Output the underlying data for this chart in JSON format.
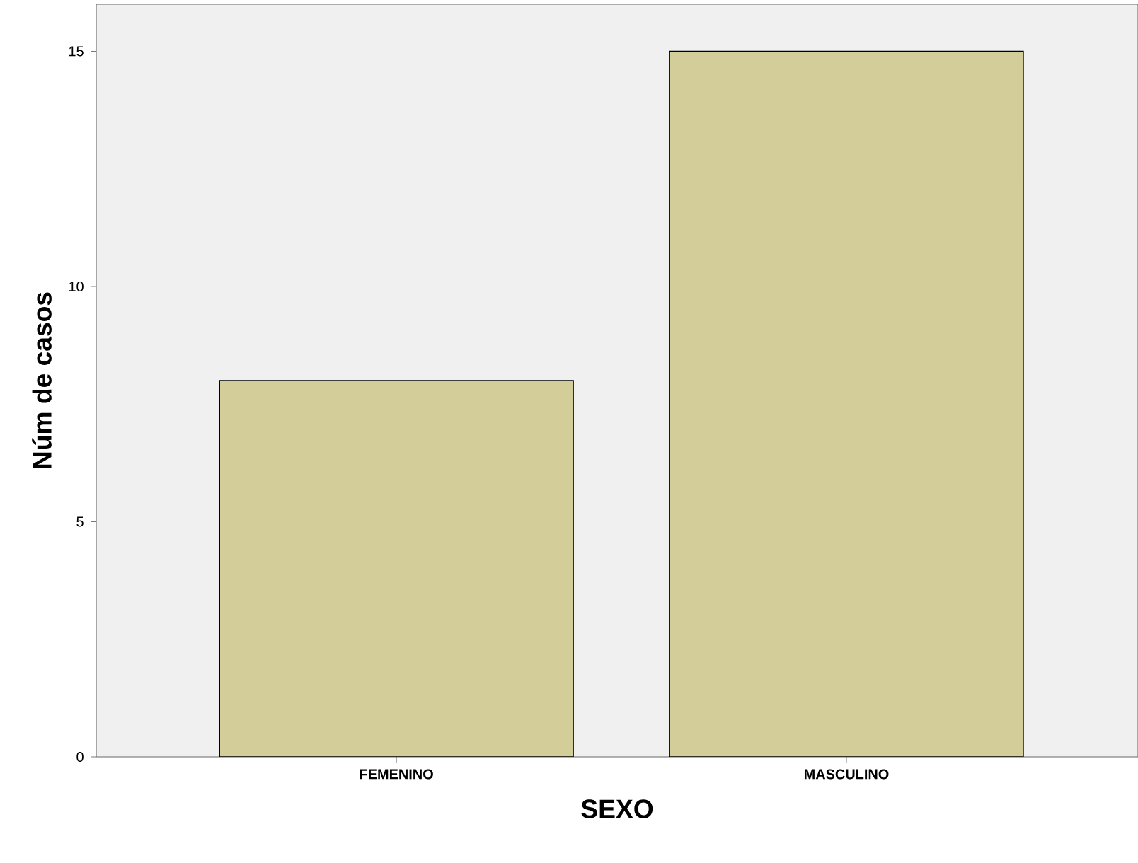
{
  "chart_data": {
    "type": "bar",
    "xlabel": "SEXO",
    "ylabel": "Núm de casos",
    "categories": [
      "FEMENINO",
      "MASCULINO"
    ],
    "values": [
      8,
      15
    ],
    "color": "#d3ce99",
    "ylim": [
      0,
      16
    ],
    "yticks": [
      0,
      5,
      10,
      15
    ],
    "grid": false
  }
}
